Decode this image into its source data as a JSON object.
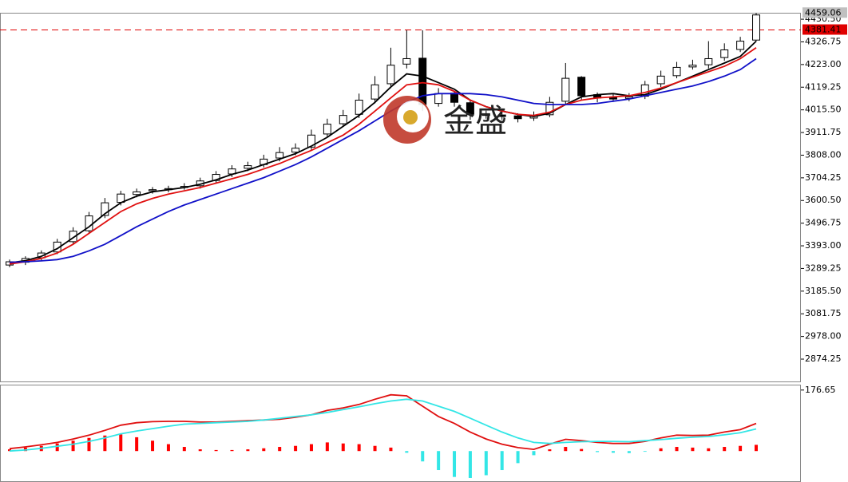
{
  "chart_data": [
    {
      "type": "candlestick",
      "ylim": [
        2772,
        4460
      ],
      "yticks": [
        {
          "value": 4430.5,
          "label": "4430.50"
        },
        4326.75,
        {
          "value": 4223,
          "label": "4223.00"
        },
        4119.25,
        {
          "value": 4015.5,
          "label": "4015.50"
        },
        3911.75,
        {
          "value": 3808,
          "label": "3808.00"
        },
        3704.25,
        {
          "value": 3600.5,
          "label": "3600.50"
        },
        3496.75,
        {
          "value": 3393,
          "label": "3393.00"
        },
        3289.25,
        {
          "value": 3185.5,
          "label": "3185.50"
        },
        3081.75,
        {
          "value": 2978,
          "label": "2978.00"
        },
        2874.25
      ],
      "open": [
        3305,
        3318,
        3338,
        3365,
        3412,
        3462,
        3532,
        3592,
        3628,
        3645,
        3650,
        3660,
        3668,
        3692,
        3722,
        3748,
        3765,
        3795,
        3822,
        3845,
        3905,
        3952,
        3995,
        4065,
        4135,
        4225,
        4252,
        4045,
        4092,
        4048,
        3998,
        3992,
        3988,
        3978,
        3993,
        4055,
        4165,
        4085,
        4072,
        4068,
        4078,
        4135,
        4172,
        4212,
        4222,
        4255,
        4292,
        4335
      ],
      "high": [
        3330,
        3345,
        3372,
        3425,
        3478,
        3548,
        3612,
        3645,
        3655,
        3662,
        3668,
        3680,
        3705,
        3735,
        3762,
        3778,
        3810,
        3845,
        3862,
        3925,
        3975,
        4015,
        4090,
        4170,
        4300,
        4380,
        4380,
        4115,
        4098,
        4060,
        4012,
        4005,
        4000,
        4008,
        4075,
        4230,
        4170,
        4095,
        4088,
        4092,
        4148,
        4195,
        4235,
        4245,
        4330,
        4320,
        4350,
        4459
      ],
      "low": [
        3295,
        3305,
        3325,
        3355,
        3400,
        3450,
        3520,
        3578,
        3615,
        3632,
        3638,
        3650,
        3655,
        3680,
        3708,
        3735,
        3752,
        3780,
        3808,
        3830,
        3890,
        3938,
        3978,
        4045,
        4115,
        4205,
        4010,
        4030,
        4030,
        3970,
        3975,
        3970,
        3958,
        3965,
        3982,
        4040,
        4060,
        4050,
        4052,
        4055,
        4065,
        4120,
        4160,
        4200,
        4205,
        4240,
        4280,
        4330
      ],
      "close": [
        3320,
        3335,
        3360,
        3410,
        3460,
        3530,
        3590,
        3630,
        3640,
        3650,
        3655,
        3665,
        3690,
        3720,
        3745,
        3760,
        3790,
        3820,
        3840,
        3900,
        3950,
        3990,
        4060,
        4130,
        4220,
        4250,
        4040,
        4090,
        4050,
        3995,
        3990,
        3985,
        3975,
        3990,
        4050,
        4160,
        4080,
        4070,
        4065,
        4075,
        4130,
        4170,
        4210,
        4220,
        4250,
        4290,
        4330,
        4450
      ],
      "up_color": "#ffffff",
      "down_color": "#000000",
      "border_color": "#000000",
      "series": [
        {
          "color": "#000000",
          "values": [
            3315,
            3325,
            3345,
            3380,
            3430,
            3480,
            3540,
            3590,
            3620,
            3640,
            3650,
            3660,
            3675,
            3695,
            3720,
            3740,
            3765,
            3790,
            3815,
            3850,
            3890,
            3940,
            3990,
            4050,
            4120,
            4180,
            4170,
            4140,
            4110,
            4060,
            4030,
            4010,
            3995,
            3985,
            4000,
            4040,
            4075,
            4085,
            4090,
            4080,
            4085,
            4110,
            4140,
            4170,
            4200,
            4230,
            4260,
            4330
          ]
        },
        {
          "color": "#e01010",
          "values": [
            3310,
            3320,
            3335,
            3360,
            3400,
            3450,
            3500,
            3550,
            3585,
            3610,
            3630,
            3645,
            3660,
            3680,
            3700,
            3720,
            3745,
            3770,
            3800,
            3830,
            3865,
            3900,
            3950,
            4010,
            4070,
            4130,
            4140,
            4130,
            4100,
            4060,
            4030,
            4010,
            3995,
            3990,
            4005,
            4040,
            4060,
            4070,
            4075,
            4080,
            4095,
            4115,
            4140,
            4165,
            4190,
            4215,
            4250,
            4300
          ]
        },
        {
          "color": "#1010c8",
          "values": [
            3318,
            3320,
            3324,
            3330,
            3345,
            3370,
            3400,
            3440,
            3480,
            3515,
            3550,
            3580,
            3605,
            3630,
            3655,
            3680,
            3705,
            3735,
            3765,
            3800,
            3840,
            3880,
            3920,
            3965,
            4010,
            4050,
            4080,
            4090,
            4090,
            4090,
            4085,
            4075,
            4060,
            4045,
            4040,
            4040,
            4040,
            4045,
            4055,
            4065,
            4080,
            4095,
            4110,
            4125,
            4145,
            4170,
            4200,
            4250
          ]
        }
      ],
      "marked_price": 4381.41,
      "marked_color": "#e00000",
      "last_price": 4459.06,
      "last_color": "#c0c0c0",
      "watermark": "金盛"
    },
    {
      "type": "macd",
      "ylim": [
        -85,
        190
      ],
      "yticks": [
        176.65
      ],
      "histogram": {
        "up_color": "#ff0000",
        "down_color": "#33e6e6",
        "values": [
          5,
          10,
          15,
          22,
          30,
          38,
          45,
          48,
          40,
          30,
          20,
          12,
          5,
          3,
          3,
          5,
          8,
          12,
          15,
          20,
          25,
          22,
          20,
          15,
          10,
          -5,
          -30,
          -55,
          -75,
          -78,
          -70,
          -55,
          -35,
          -12,
          5,
          12,
          6,
          -3,
          -5,
          -6,
          -2,
          8,
          12,
          10,
          8,
          12,
          15,
          18
        ]
      },
      "series": [
        {
          "color": "#e01010",
          "values": [
            7,
            12,
            18,
            25,
            35,
            46,
            60,
            75,
            82,
            85,
            86,
            86,
            84,
            84,
            86,
            88,
            90,
            92,
            98,
            105,
            118,
            125,
            135,
            150,
            163,
            160,
            130,
            100,
            80,
            55,
            35,
            20,
            10,
            5,
            20,
            34,
            30,
            25,
            22,
            22,
            28,
            38,
            46,
            45,
            46,
            55,
            62,
            80
          ]
        },
        {
          "color": "#33e6e6",
          "values": [
            0,
            3,
            8,
            14,
            20,
            28,
            38,
            50,
            58,
            65,
            72,
            78,
            80,
            82,
            84,
            86,
            90,
            95,
            100,
            105,
            112,
            120,
            128,
            137,
            145,
            150,
            145,
            130,
            115,
            95,
            75,
            55,
            38,
            25,
            22,
            25,
            27,
            28,
            28,
            27,
            30,
            33,
            37,
            40,
            42,
            47,
            53,
            64
          ]
        }
      ]
    }
  ]
}
